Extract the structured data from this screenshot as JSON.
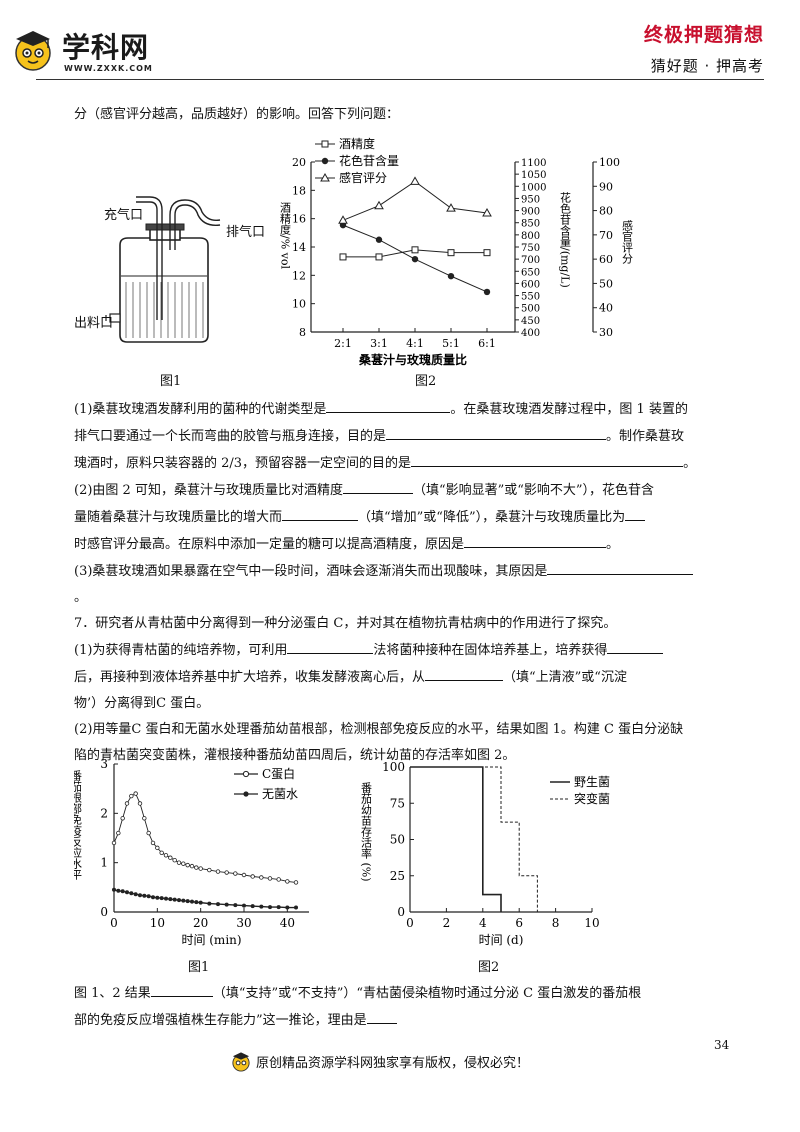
{
  "header": {
    "logo_text": "学科网",
    "logo_url": "WWW.ZXXK.COM",
    "right_title": "终极押题猜想",
    "right_sub": "猜好题 · 押高考"
  },
  "intro_line": "分（感官评分越高，品质越好）的影响。回答下列问题：",
  "apparatus": {
    "label_inlet": "充气口",
    "label_exhaust": "排气口",
    "label_outlet": "出料口",
    "caption": "图1"
  },
  "chart1": {
    "caption": "图2",
    "legend": [
      "酒精度",
      "花色苷含量",
      "感官评分"
    ],
    "xlabel": "桑葚汁与玫瑰质量比",
    "left_axis_label": "酒精度/% vol",
    "mid_axis_label": "花色苷含量/(mg/L)",
    "right_axis_label": "感官评分",
    "left_ticks": [
      "8",
      "10",
      "12",
      "14",
      "16",
      "18",
      "20"
    ],
    "mid_ticks": [
      "400",
      "450",
      "500",
      "550",
      "600",
      "650",
      "700",
      "750",
      "800",
      "850",
      "900",
      "950",
      "1000",
      "1050",
      "1100"
    ],
    "right_ticks": [
      "30",
      "40",
      "50",
      "60",
      "70",
      "80",
      "90",
      "100"
    ]
  },
  "chart_data": [
    {
      "type": "line",
      "categories": [
        "2:1",
        "3:1",
        "4:1",
        "5:1",
        "6:1"
      ],
      "xlabel": "桑葚汁与玫瑰质量比",
      "series": [
        {
          "name": "酒精度",
          "axis": "left",
          "ylim": [
            8,
            20
          ],
          "values": [
            13.3,
            13.3,
            13.8,
            13.6,
            13.6
          ]
        },
        {
          "name": "花色苷含量",
          "axis": "middle",
          "ylim": [
            400,
            1100
          ],
          "values": [
            840,
            780,
            700,
            630,
            565
          ]
        },
        {
          "name": "感官评分",
          "axis": "right",
          "ylim": [
            30,
            100
          ],
          "values": [
            76,
            82,
            92,
            81,
            79
          ]
        }
      ]
    },
    {
      "type": "line",
      "xlabel": "时间 (min)",
      "ylabel": "番茄根部免疫反应水平",
      "xlim": [
        0,
        45
      ],
      "ylim": [
        0,
        3
      ],
      "x_ticks": [
        "0",
        "10",
        "20",
        "30",
        "40"
      ],
      "y_ticks": [
        "0",
        "1",
        "2",
        "3"
      ],
      "caption": "图1",
      "series": [
        {
          "name": "C蛋白",
          "points": [
            [
              0,
              1.4
            ],
            [
              1,
              1.6
            ],
            [
              2,
              1.9
            ],
            [
              3,
              2.2
            ],
            [
              4,
              2.35
            ],
            [
              5,
              2.4
            ],
            [
              6,
              2.2
            ],
            [
              7,
              1.9
            ],
            [
              8,
              1.6
            ],
            [
              9,
              1.4
            ],
            [
              10,
              1.3
            ],
            [
              11,
              1.2
            ],
            [
              12,
              1.15
            ],
            [
              13,
              1.1
            ],
            [
              14,
              1.05
            ],
            [
              15,
              1.0
            ],
            [
              16,
              0.98
            ],
            [
              17,
              0.95
            ],
            [
              18,
              0.93
            ],
            [
              19,
              0.9
            ],
            [
              20,
              0.88
            ],
            [
              22,
              0.85
            ],
            [
              24,
              0.82
            ],
            [
              26,
              0.8
            ],
            [
              28,
              0.78
            ],
            [
              30,
              0.75
            ],
            [
              32,
              0.72
            ],
            [
              34,
              0.7
            ],
            [
              36,
              0.68
            ],
            [
              38,
              0.66
            ],
            [
              40,
              0.62
            ],
            [
              42,
              0.6
            ]
          ]
        },
        {
          "name": "无菌水",
          "points": [
            [
              0,
              0.45
            ],
            [
              1,
              0.43
            ],
            [
              2,
              0.42
            ],
            [
              3,
              0.4
            ],
            [
              4,
              0.38
            ],
            [
              5,
              0.36
            ],
            [
              6,
              0.34
            ],
            [
              7,
              0.33
            ],
            [
              8,
              0.32
            ],
            [
              9,
              0.3
            ],
            [
              10,
              0.29
            ],
            [
              11,
              0.28
            ],
            [
              12,
              0.27
            ],
            [
              13,
              0.26
            ],
            [
              14,
              0.25
            ],
            [
              15,
              0.24
            ],
            [
              16,
              0.23
            ],
            [
              17,
              0.22
            ],
            [
              18,
              0.21
            ],
            [
              19,
              0.2
            ],
            [
              20,
              0.19
            ],
            [
              22,
              0.17
            ],
            [
              24,
              0.16
            ],
            [
              26,
              0.15
            ],
            [
              28,
              0.14
            ],
            [
              30,
              0.13
            ],
            [
              32,
              0.12
            ],
            [
              34,
              0.11
            ],
            [
              36,
              0.1
            ],
            [
              38,
              0.1
            ],
            [
              40,
              0.09
            ],
            [
              42,
              0.09
            ]
          ]
        }
      ]
    },
    {
      "type": "line",
      "xlabel": "时间 (d)",
      "ylabel": "番茄幼苗存活率 (%)",
      "xlim": [
        0,
        10
      ],
      "ylim": [
        0,
        100
      ],
      "x_ticks": [
        "0",
        "2",
        "4",
        "6",
        "8",
        "10"
      ],
      "y_ticks": [
        "0",
        "25",
        "50",
        "75",
        "100"
      ],
      "caption": "图2",
      "series": [
        {
          "name": "野生菌",
          "style": "solid",
          "step_points": [
            [
              0,
              100
            ],
            [
              4,
              100
            ],
            [
              4,
              12
            ],
            [
              5,
              12
            ],
            [
              5,
              0
            ]
          ]
        },
        {
          "name": "突变菌",
          "style": "dashed",
          "step_points": [
            [
              0,
              100
            ],
            [
              5,
              100
            ],
            [
              5,
              62
            ],
            [
              6,
              62
            ],
            [
              6,
              25
            ],
            [
              7,
              25
            ],
            [
              7,
              0
            ]
          ]
        }
      ]
    }
  ],
  "questions": {
    "q1_a": "(1)桑葚玫瑰酒发酵利用的菌种的代谢类型是",
    "q1_b": "。在桑葚玫瑰酒发酵过程中，图 1 装置的",
    "q1_c": "排气口要通过一个长而弯曲的胶管与瓶身连接，目的是",
    "q1_d": "。制作桑葚玫",
    "q1_e": "瑰酒时，原料只装容器的 2/3，预留容器一定空间的目的是",
    "q1_f": "。",
    "q2_a": "(2)由图 2 可知，桑葚汁与玫瑰质量比对酒精度",
    "q2_b": "（填“影响显著”或“影响不大”），花色苷含",
    "q2_c": "量随着桑葚汁与玫瑰质量比的增大而",
    "q2_d": "（填“增加”或“降低”），桑葚汁与玫瑰质量比为",
    "q2_e": "时感官评分最高。在原料中添加一定量的糖可以提高酒精度，原因是",
    "q2_f": "。",
    "q3_a": "(3)桑葚玫瑰酒如果暴露在空气中一段时间，酒味会逐渐消失而出现酸味，其原因是",
    "q3_b": "。",
    "q7_intro": "7．研究者从青枯菌中分离得到一种分泌蛋白 C，并对其在植物抗青枯病中的作用进行了探究。",
    "q7_1a": "(1)为获得青枯菌的纯培养物，可利用",
    "q7_1b": "法将菌种接种在固体培养基上，培养获得",
    "q7_1c": "后，再接种到液体培养基中扩大培养，收集发酵液离心后，从",
    "q7_1d": "（填“上清液”或“沉淀",
    "q7_1e": "物’）分离得到C 蛋白。",
    "q7_2a": "(2)用等量C 蛋白和无菌水处理番茄幼苗根部，检测根部免疫反应的水平，结果如图 1。构建 C 蛋白分泌缺",
    "q7_2b": "陷的青枯菌突变菌株，灌根接种番茄幼苗四周后，统计幼苗的存活率如图 2。",
    "q7_3a": "图 1、2 结果",
    "q7_3b": "（填“支持”或“不支持”）“青枯菌侵染植物时通过分泌 C 蛋白激发的番茄根",
    "q7_3c": "部的免疫反应增强植株生存能力”这一推论，理由是"
  },
  "page_number": "34",
  "footer": "原创精品资源学科网独家享有版权，侵权必究！"
}
